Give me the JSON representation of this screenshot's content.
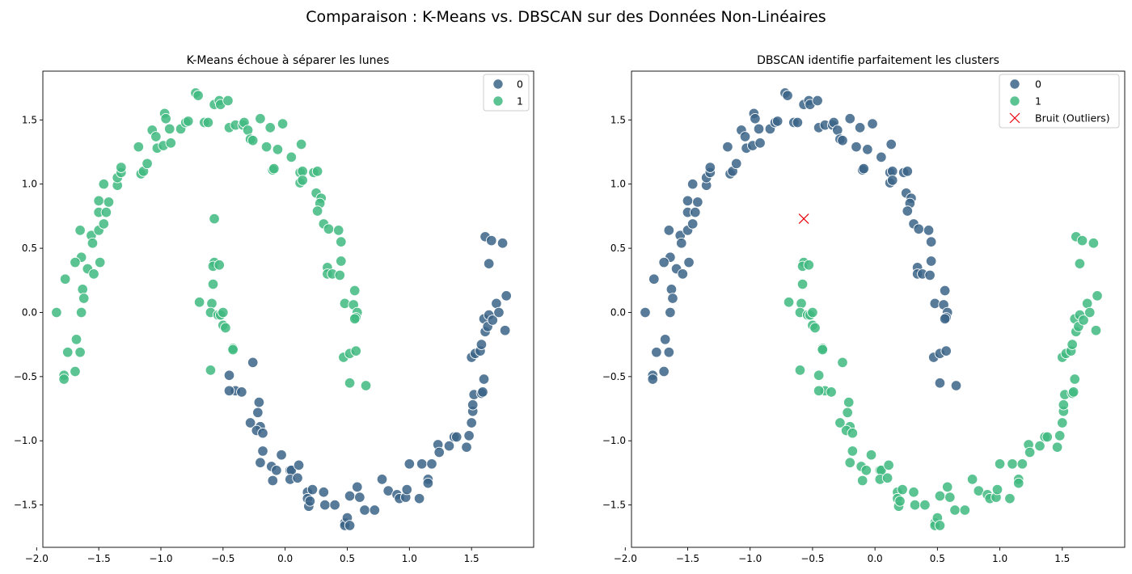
{
  "suptitle": "Comparaison : K-Means vs. DBSCAN sur des Données Non-Linéaires",
  "colors": {
    "cluster0": "#3b6487",
    "cluster1": "#3fba80",
    "noise": "#e8000b",
    "edge": "#ffffff"
  },
  "chart_data": [
    {
      "type": "scatter",
      "title": "K-Means échoue à séparer les lunes",
      "xlim": [
        -1.95,
        2.0
      ],
      "ylim": [
        -1.83,
        1.88
      ],
      "xticks": [
        "−2.0",
        "−1.5",
        "−1.0",
        "−0.5",
        "0.0",
        "0.5",
        "1.0",
        "1.5"
      ],
      "yticks": [
        "−1.5",
        "−1.0",
        "−0.5",
        "0.0",
        "0.5",
        "1.0",
        "1.5"
      ],
      "legend": {
        "position": "top-right",
        "labels": [
          "0",
          "1"
        ]
      },
      "relabel": "kmeans"
    },
    {
      "type": "scatter",
      "title": "DBSCAN identifie parfaitement les clusters",
      "xlim": [
        -1.95,
        2.0
      ],
      "ylim": [
        -1.83,
        1.88
      ],
      "xticks": [
        "−2.0",
        "−1.5",
        "−1.0",
        "−0.5",
        "0.0",
        "0.5",
        "1.0",
        "1.5"
      ],
      "yticks": [
        "−1.5",
        "−1.0",
        "−0.5",
        "0.0",
        "0.5",
        "1.0",
        "1.5"
      ],
      "legend": {
        "position": "top-right",
        "labels": [
          "0",
          "1",
          "Bruit (Outliers)"
        ]
      },
      "relabel": "dbscan"
    }
  ],
  "points": {
    "upper_moon": [
      [
        -1.84,
        0.0
      ],
      [
        -1.77,
        0.26
      ],
      [
        -1.75,
        -0.31
      ],
      [
        -1.78,
        -0.49
      ],
      [
        -1.78,
        -0.52
      ],
      [
        -1.69,
        -0.46
      ],
      [
        -1.68,
        -0.21
      ],
      [
        -1.65,
        -0.31
      ],
      [
        -1.64,
        0.0
      ],
      [
        -1.63,
        0.18
      ],
      [
        -1.62,
        0.11
      ],
      [
        -1.65,
        0.64
      ],
      [
        -1.64,
        0.43
      ],
      [
        -1.69,
        0.39
      ],
      [
        -1.59,
        0.34
      ],
      [
        -1.56,
        0.6
      ],
      [
        -1.55,
        0.54
      ],
      [
        -1.54,
        0.3
      ],
      [
        -1.49,
        0.39
      ],
      [
        -1.5,
        0.64
      ],
      [
        -1.5,
        0.78
      ],
      [
        -1.5,
        0.87
      ],
      [
        -1.46,
        0.69
      ],
      [
        -1.44,
        0.78
      ],
      [
        -1.42,
        0.86
      ],
      [
        -1.46,
        1.0
      ],
      [
        -1.35,
        0.99
      ],
      [
        -1.35,
        1.05
      ],
      [
        -1.32,
        1.09
      ],
      [
        -1.32,
        1.13
      ],
      [
        -1.18,
        1.29
      ],
      [
        -1.16,
        1.08
      ],
      [
        -1.14,
        1.1
      ],
      [
        -1.11,
        1.16
      ],
      [
        -1.07,
        1.42
      ],
      [
        -1.04,
        1.37
      ],
      [
        -1.03,
        1.28
      ],
      [
        -0.98,
        1.3
      ],
      [
        -0.97,
        1.55
      ],
      [
        -0.96,
        1.51
      ],
      [
        -0.93,
        1.43
      ],
      [
        -0.92,
        1.32
      ],
      [
        -0.84,
        1.43
      ],
      [
        -0.8,
        1.48
      ],
      [
        -0.78,
        1.49
      ],
      [
        -0.72,
        1.71
      ],
      [
        -0.7,
        1.69
      ],
      [
        -0.65,
        1.48
      ],
      [
        -0.62,
        1.48
      ],
      [
        -0.57,
        1.62
      ],
      [
        -0.53,
        1.65
      ],
      [
        -0.52,
        1.62
      ],
      [
        -0.46,
        1.65
      ],
      [
        -0.45,
        1.44
      ],
      [
        -0.4,
        1.46
      ],
      [
        -0.34,
        1.46
      ],
      [
        -0.33,
        1.48
      ],
      [
        -0.3,
        1.42
      ],
      [
        -0.28,
        1.35
      ],
      [
        -0.26,
        1.34
      ],
      [
        -0.2,
        1.51
      ],
      [
        -0.15,
        1.29
      ],
      [
        -0.12,
        1.44
      ],
      [
        -0.1,
        1.11
      ],
      [
        -0.09,
        1.12
      ],
      [
        -0.06,
        1.27
      ],
      [
        -0.02,
        1.47
      ],
      [
        0.05,
        1.21
      ],
      [
        0.13,
        1.31
      ],
      [
        0.12,
        1.09
      ],
      [
        0.14,
        1.1
      ],
      [
        0.12,
        1.01
      ],
      [
        0.14,
        1.03
      ],
      [
        0.23,
        1.09
      ],
      [
        0.26,
        1.1
      ],
      [
        0.25,
        0.93
      ],
      [
        0.29,
        0.89
      ],
      [
        0.28,
        0.85
      ],
      [
        0.26,
        0.79
      ],
      [
        0.31,
        0.69
      ],
      [
        0.35,
        0.65
      ],
      [
        0.43,
        0.64
      ],
      [
        0.45,
        0.55
      ],
      [
        0.34,
        0.35
      ],
      [
        0.34,
        0.3
      ],
      [
        0.38,
        0.3
      ],
      [
        0.44,
        0.29
      ],
      [
        0.45,
        0.4
      ],
      [
        0.48,
        0.07
      ],
      [
        0.55,
        0.06
      ],
      [
        0.56,
        0.17
      ],
      [
        0.58,
        0.0
      ],
      [
        0.57,
        -0.04
      ],
      [
        0.56,
        -0.05
      ],
      [
        0.47,
        -0.35
      ],
      [
        0.52,
        -0.32
      ],
      [
        0.57,
        -0.3
      ],
      [
        0.52,
        -0.55
      ],
      [
        0.65,
        -0.57
      ]
    ],
    "lower_moon": [
      [
        -0.57,
        0.73
      ],
      [
        -0.57,
        0.39
      ],
      [
        -0.58,
        0.36
      ],
      [
        -0.53,
        0.37
      ],
      [
        -0.58,
        0.22
      ],
      [
        -0.69,
        0.08
      ],
      [
        -0.59,
        0.07
      ],
      [
        -0.6,
        0.0
      ],
      [
        -0.54,
        -0.02
      ],
      [
        -0.52,
        -0.02
      ],
      [
        -0.5,
        0.0
      ],
      [
        -0.5,
        -0.1
      ],
      [
        -0.48,
        -0.12
      ],
      [
        -0.6,
        -0.45
      ],
      [
        -0.42,
        -0.28
      ],
      [
        -0.42,
        -0.29
      ],
      [
        -0.4,
        -0.61
      ],
      [
        -0.45,
        -0.61
      ],
      [
        -0.45,
        -0.49
      ],
      [
        -0.26,
        -0.39
      ],
      [
        -0.35,
        -0.62
      ],
      [
        -0.21,
        -0.7
      ],
      [
        -0.22,
        -0.78
      ],
      [
        -0.28,
        -0.86
      ],
      [
        -0.2,
        -0.89
      ],
      [
        -0.23,
        -0.92
      ],
      [
        -0.18,
        -0.94
      ],
      [
        -0.18,
        -1.08
      ],
      [
        -0.2,
        -1.17
      ],
      [
        -0.11,
        -1.2
      ],
      [
        -0.07,
        -1.23
      ],
      [
        -0.03,
        -1.11
      ],
      [
        -0.1,
        -1.31
      ],
      [
        0.04,
        -1.23
      ],
      [
        0.05,
        -1.23
      ],
      [
        0.04,
        -1.3
      ],
      [
        0.1,
        -1.29
      ],
      [
        0.11,
        -1.19
      ],
      [
        0.18,
        -1.4
      ],
      [
        0.18,
        -1.45
      ],
      [
        0.19,
        -1.51
      ],
      [
        0.2,
        -1.47
      ],
      [
        0.22,
        -1.38
      ],
      [
        0.31,
        -1.4
      ],
      [
        0.32,
        -1.5
      ],
      [
        0.4,
        -1.5
      ],
      [
        0.48,
        -1.64
      ],
      [
        0.48,
        -1.66
      ],
      [
        0.5,
        -1.6
      ],
      [
        0.52,
        -1.66
      ],
      [
        0.52,
        -1.43
      ],
      [
        0.58,
        -1.36
      ],
      [
        0.6,
        -1.44
      ],
      [
        0.64,
        -1.54
      ],
      [
        0.72,
        -1.54
      ],
      [
        0.78,
        -1.3
      ],
      [
        0.83,
        -1.39
      ],
      [
        0.9,
        -1.42
      ],
      [
        0.92,
        -1.45
      ],
      [
        0.97,
        -1.44
      ],
      [
        0.98,
        -1.38
      ],
      [
        1.0,
        -1.18
      ],
      [
        1.08,
        -1.45
      ],
      [
        1.1,
        -1.18
      ],
      [
        1.15,
        -1.3
      ],
      [
        1.15,
        -1.33
      ],
      [
        1.18,
        -1.18
      ],
      [
        1.23,
        -1.03
      ],
      [
        1.24,
        -1.09
      ],
      [
        1.32,
        -1.04
      ],
      [
        1.36,
        -0.97
      ],
      [
        1.38,
        -0.97
      ],
      [
        1.46,
        -1.05
      ],
      [
        1.48,
        -0.96
      ],
      [
        1.5,
        -0.86
      ],
      [
        1.51,
        -0.77
      ],
      [
        1.51,
        -0.72
      ],
      [
        1.52,
        -0.64
      ],
      [
        1.5,
        -0.35
      ],
      [
        1.53,
        -0.32
      ],
      [
        1.57,
        -0.3
      ],
      [
        1.58,
        -0.63
      ],
      [
        1.59,
        -0.62
      ],
      [
        1.6,
        -0.52
      ],
      [
        1.58,
        -0.25
      ],
      [
        1.61,
        -0.15
      ],
      [
        1.6,
        -0.05
      ],
      [
        1.63,
        -0.11
      ],
      [
        1.64,
        -0.02
      ],
      [
        1.67,
        -0.06
      ],
      [
        1.7,
        0.07
      ],
      [
        1.72,
        0.0
      ],
      [
        1.77,
        -0.14
      ],
      [
        1.78,
        0.13
      ],
      [
        1.61,
        0.59
      ],
      [
        1.66,
        0.56
      ],
      [
        1.75,
        0.54
      ],
      [
        1.64,
        0.38
      ]
    ],
    "kmeans_to_cluster0": [
      0,
      1,
      2,
      3,
      4,
      5,
      6,
      7,
      8,
      9,
      10,
      11,
      12,
      13,
      14,
      15
    ],
    "noise": [
      [
        -0.57,
        0.73
      ]
    ]
  }
}
